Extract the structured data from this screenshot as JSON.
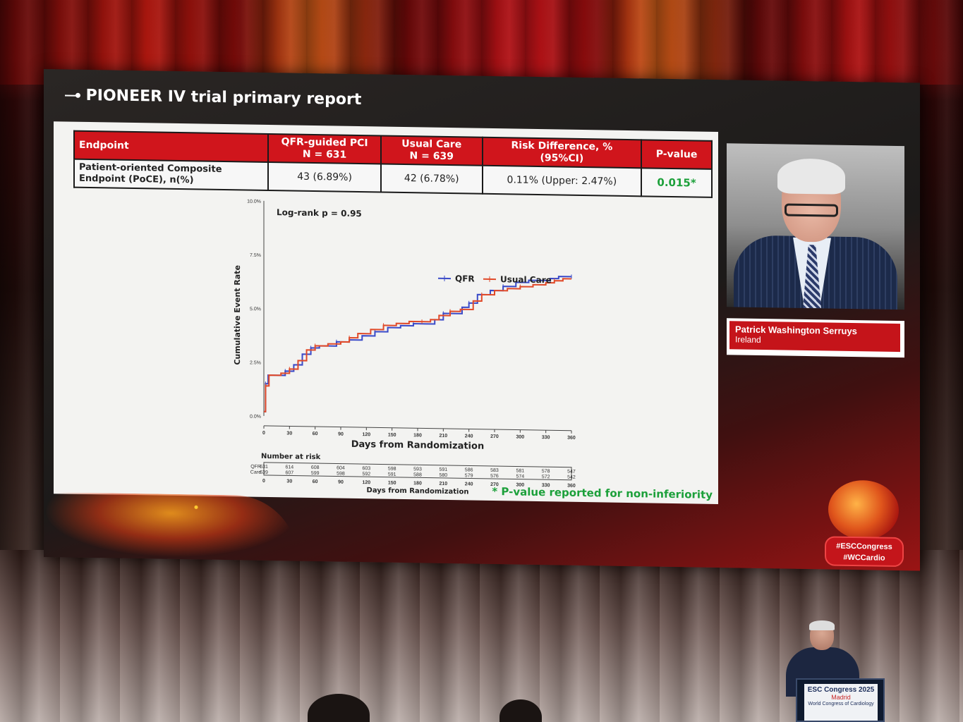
{
  "slide": {
    "title": "PIONEER IV trial primary report",
    "table": {
      "headers": [
        {
          "line1": "Endpoint",
          "line2": ""
        },
        {
          "line1": "QFR-guided PCI",
          "line2": "N = 631"
        },
        {
          "line1": "Usual Care",
          "line2": "N = 639"
        },
        {
          "line1": "Risk Difference, %",
          "line2": "(95%CI)"
        },
        {
          "line1": "P-value",
          "line2": ""
        }
      ],
      "row": {
        "endpoint_line1": "Patient-oriented Composite",
        "endpoint_line2": "Endpoint (PoCE), n(%)",
        "qfr": "43 (6.89%)",
        "usual": "42 (6.78%)",
        "risk_diff": "0.11% (Upper: 2.47%)",
        "pvalue": "0.015*"
      }
    },
    "footnote": "* P-value reported for non-inferiority"
  },
  "chart_data": {
    "type": "line",
    "annotation": "Log-rank p = 0.95",
    "xlabel": "Days from Randomization",
    "ylabel": "Cumulative Event Rate",
    "xlim": [
      0,
      360
    ],
    "ylim": [
      0,
      10
    ],
    "x_ticks": [
      "0",
      "30",
      "60",
      "90",
      "120",
      "150",
      "180",
      "210",
      "240",
      "270",
      "300",
      "330",
      "360"
    ],
    "y_ticks": [
      "0.0%",
      "2.5%",
      "5.0%",
      "7.5%",
      "10.0%"
    ],
    "series": [
      {
        "name": "QFR",
        "color": "#3a4ac8",
        "points": [
          [
            0,
            0.2
          ],
          [
            2,
            1.5
          ],
          [
            5,
            1.9
          ],
          [
            15,
            1.9
          ],
          [
            25,
            2.1
          ],
          [
            35,
            2.4
          ],
          [
            45,
            2.9
          ],
          [
            55,
            3.2
          ],
          [
            65,
            3.3
          ],
          [
            75,
            3.3
          ],
          [
            85,
            3.5
          ],
          [
            100,
            3.6
          ],
          [
            115,
            3.8
          ],
          [
            130,
            4.0
          ],
          [
            145,
            4.2
          ],
          [
            160,
            4.3
          ],
          [
            175,
            4.4
          ],
          [
            190,
            4.4
          ],
          [
            200,
            4.6
          ],
          [
            210,
            4.9
          ],
          [
            220,
            4.9
          ],
          [
            232,
            5.2
          ],
          [
            240,
            5.4
          ],
          [
            250,
            5.8
          ],
          [
            265,
            6.0
          ],
          [
            280,
            6.2
          ],
          [
            295,
            6.4
          ],
          [
            310,
            6.5
          ],
          [
            320,
            6.5
          ],
          [
            335,
            6.6
          ],
          [
            345,
            6.7
          ],
          [
            360,
            6.7
          ]
        ]
      },
      {
        "name": "Usual Care",
        "color": "#e04a2a",
        "points": [
          [
            0,
            0.2
          ],
          [
            2,
            1.4
          ],
          [
            6,
            1.9
          ],
          [
            20,
            2.0
          ],
          [
            30,
            2.2
          ],
          [
            40,
            2.6
          ],
          [
            50,
            3.1
          ],
          [
            60,
            3.3
          ],
          [
            75,
            3.4
          ],
          [
            90,
            3.5
          ],
          [
            100,
            3.7
          ],
          [
            110,
            3.9
          ],
          [
            125,
            4.1
          ],
          [
            140,
            4.3
          ],
          [
            155,
            4.4
          ],
          [
            170,
            4.5
          ],
          [
            185,
            4.5
          ],
          [
            195,
            4.6
          ],
          [
            205,
            4.8
          ],
          [
            218,
            5.0
          ],
          [
            230,
            5.1
          ],
          [
            245,
            5.5
          ],
          [
            255,
            5.8
          ],
          [
            270,
            6.0
          ],
          [
            285,
            6.1
          ],
          [
            300,
            6.2
          ],
          [
            315,
            6.3
          ],
          [
            330,
            6.4
          ],
          [
            340,
            6.5
          ],
          [
            350,
            6.6
          ],
          [
            360,
            6.6
          ]
        ]
      }
    ],
    "legend": [
      {
        "name": "QFR",
        "color": "#3a4ac8"
      },
      {
        "name": "Usual Care",
        "color": "#e04a2a"
      }
    ],
    "risk_table": {
      "title": "Number at risk",
      "row_labels": [
        "QFR",
        "Care"
      ],
      "days": [
        "0",
        "30",
        "60",
        "90",
        "120",
        "150",
        "180",
        "210",
        "240",
        "270",
        "300",
        "330",
        "360"
      ],
      "qfr": [
        "631",
        "614",
        "608",
        "604",
        "603",
        "598",
        "593",
        "591",
        "586",
        "583",
        "581",
        "578",
        "547"
      ],
      "care": [
        "639",
        "607",
        "599",
        "598",
        "592",
        "591",
        "588",
        "580",
        "579",
        "576",
        "574",
        "572",
        "542"
      ],
      "xlabel": "Days from Randomization"
    }
  },
  "speaker": {
    "name": "Patrick Washington Serruys",
    "country": "Ireland"
  },
  "hashtags": {
    "line1": "#ESCCongress",
    "line2": "#WCCardio"
  },
  "podium": {
    "line1": "ESC Congress 2025",
    "line2": "Madrid",
    "line3": "World Congress of Cardiology"
  }
}
